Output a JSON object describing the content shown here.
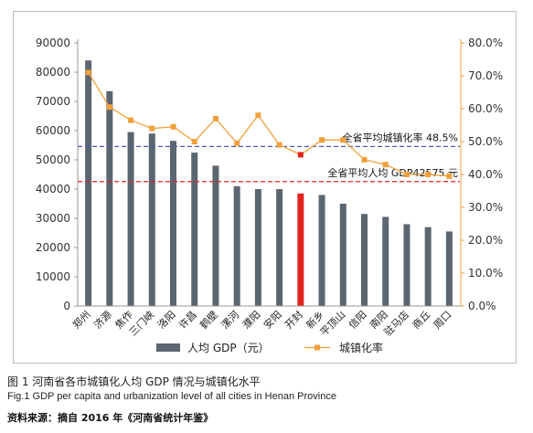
{
  "chart_data": {
    "type": "bar",
    "categories": [
      "郑州",
      "济源",
      "焦作",
      "三门峡",
      "洛阳",
      "许昌",
      "鹤壁",
      "漯河",
      "濮阳",
      "安阳",
      "开封",
      "新乡",
      "平顶山",
      "信阳",
      "南阳",
      "驻马店",
      "商丘",
      "周口"
    ],
    "series": [
      {
        "name": "人均 GDP（元）",
        "type": "bar",
        "axis": "left",
        "color": "#5b6670",
        "highlight_color": "#e1231f",
        "highlight_index": 10,
        "values": [
          84000,
          73500,
          59500,
          59000,
          56500,
          52500,
          48000,
          41000,
          40000,
          40000,
          38500,
          38000,
          35000,
          31500,
          30500,
          28000,
          27000,
          25500
        ]
      },
      {
        "name": "城镇化率",
        "type": "line",
        "axis": "right",
        "color": "#f0a03c",
        "highlight_color": "#e1231f",
        "highlight_index": 10,
        "values": [
          71.0,
          60.5,
          56.5,
          54.0,
          54.5,
          50.0,
          57.0,
          49.5,
          58.0,
          49.0,
          46.0,
          50.5,
          50.5,
          44.5,
          43.0,
          40.0,
          40.0,
          39.5
        ]
      }
    ],
    "y_left": {
      "min": 0,
      "max": 90000,
      "step": 10000
    },
    "y_right": {
      "min": 0,
      "max": 80,
      "step": 10,
      "suffix": "%",
      "decimals": 1
    },
    "reference_lines": [
      {
        "label": "全省平均城镇化率 48.5%",
        "value": 48.5,
        "axis": "right",
        "color": "#4a5fa8"
      },
      {
        "label": "全省平均人均 GDP42575 元",
        "value": 42575,
        "axis": "left",
        "color": "#e1231f"
      }
    ],
    "legend_position": "bottom",
    "grid": false
  },
  "caption": {
    "zh": "图 1  河南省各市城镇化人均 GDP 情况与城镇化水平",
    "en": "Fig.1    GDP per capita and urbanization level of all cities in Henan Province",
    "source": "资料来源：摘自 2016 年《河南省统计年鉴》"
  }
}
